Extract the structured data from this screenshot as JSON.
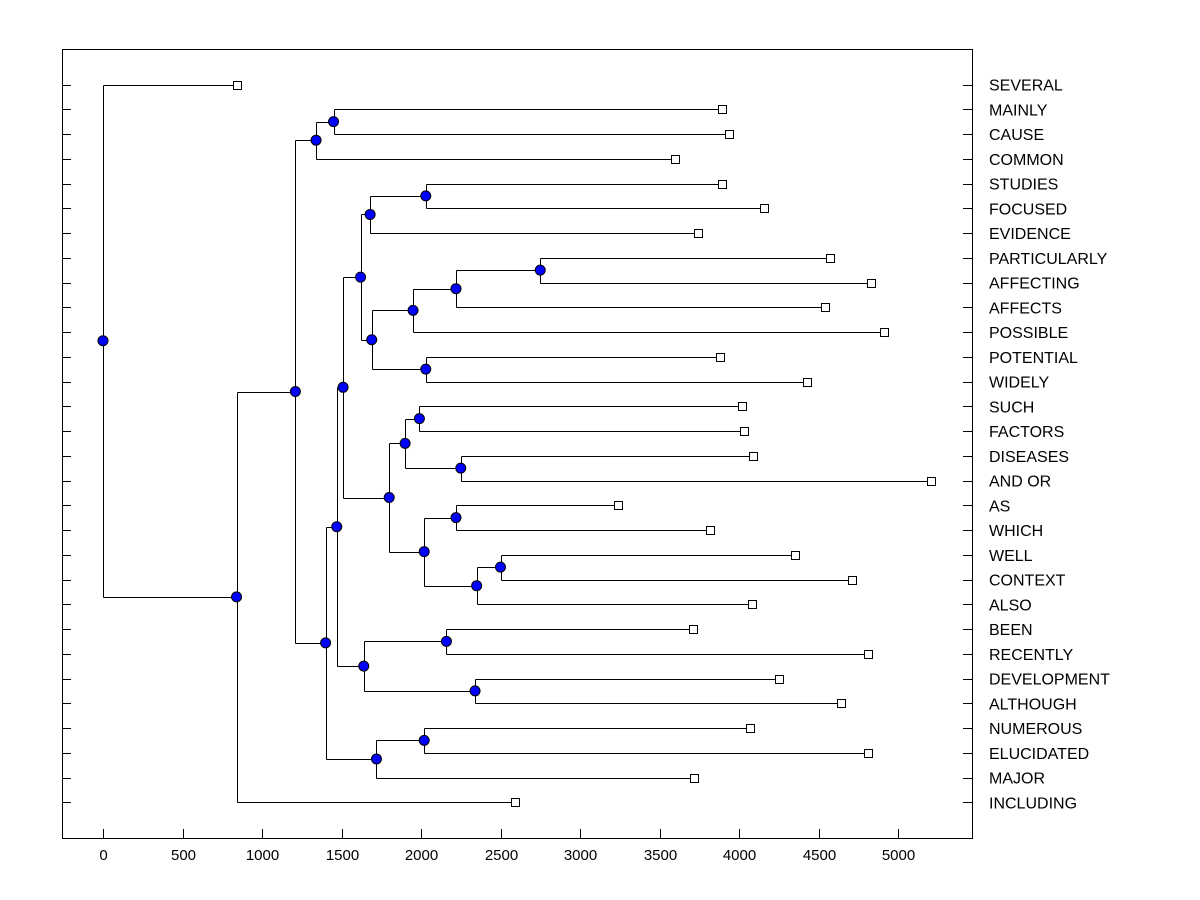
{
  "chart_data": {
    "type": "dendrogram",
    "orientation": "horizontal",
    "title": "",
    "xlabel": "",
    "ylabel": "",
    "xlim": [
      -260,
      5460
    ],
    "x_ticks": [
      0,
      500,
      1000,
      1500,
      2000,
      2500,
      3000,
      3500,
      4000,
      4500,
      5000
    ],
    "x_tick_labels": [
      "0",
      "500",
      "1000",
      "1500",
      "2000",
      "2500",
      "3000",
      "3500",
      "4000",
      "4500",
      "5000"
    ],
    "leaves": [
      {
        "label": "SEVERAL",
        "x": 840
      },
      {
        "label": "MAINLY",
        "x": 3890
      },
      {
        "label": "CAUSE",
        "x": 3940
      },
      {
        "label": "COMMON",
        "x": 3600
      },
      {
        "label": "STUDIES",
        "x": 3890
      },
      {
        "label": "FOCUSED",
        "x": 4160
      },
      {
        "label": "EVIDENCE",
        "x": 3740
      },
      {
        "label": "PARTICULARLY",
        "x": 4570
      },
      {
        "label": "AFFECTING",
        "x": 4830
      },
      {
        "label": "AFFECTS",
        "x": 4540
      },
      {
        "label": "POSSIBLE",
        "x": 4910
      },
      {
        "label": "POTENTIAL",
        "x": 3880
      },
      {
        "label": "WIDELY",
        "x": 4430
      },
      {
        "label": "SUCH",
        "x": 4020
      },
      {
        "label": "FACTORS",
        "x": 4030
      },
      {
        "label": "DISEASES",
        "x": 4090
      },
      {
        "label": "AND OR",
        "x": 5210
      },
      {
        "label": "AS",
        "x": 3240
      },
      {
        "label": "WHICH",
        "x": 3820
      },
      {
        "label": "WELL",
        "x": 4350
      },
      {
        "label": "CONTEXT",
        "x": 4710
      },
      {
        "label": "ALSO",
        "x": 4080
      },
      {
        "label": "BEEN",
        "x": 3710
      },
      {
        "label": "RECENTLY",
        "x": 4810
      },
      {
        "label": "DEVELOPMENT",
        "x": 4250
      },
      {
        "label": "ALTHOUGH",
        "x": 4640
      },
      {
        "label": "NUMEROUS",
        "x": 4070
      },
      {
        "label": "ELUCIDATED",
        "x": 4810
      },
      {
        "label": "MAJOR",
        "x": 3720
      },
      {
        "label": "INCLUDING",
        "x": 2590
      }
    ],
    "merges": [
      {
        "id": "m_mainly_cause",
        "x": 1450,
        "children": [
          "L1",
          "L2"
        ]
      },
      {
        "id": "m_mc_common",
        "x": 1340,
        "children": [
          "m_mainly_cause",
          "L3"
        ]
      },
      {
        "id": "m_studies_focused",
        "x": 2030,
        "children": [
          "L4",
          "L5"
        ]
      },
      {
        "id": "m_sf_evidence",
        "x": 1680,
        "children": [
          "m_studies_focused",
          "L6"
        ]
      },
      {
        "id": "m_part_affecting",
        "x": 2750,
        "children": [
          "L7",
          "L8"
        ]
      },
      {
        "id": "m_pa_affects",
        "x": 2220,
        "children": [
          "m_part_affecting",
          "L9"
        ]
      },
      {
        "id": "m_paa_possible",
        "x": 1950,
        "children": [
          "m_pa_affects",
          "L10"
        ]
      },
      {
        "id": "m_potential_widely",
        "x": 2030,
        "children": [
          "L11",
          "L12"
        ]
      },
      {
        "id": "m_pos_pot",
        "x": 1690,
        "children": [
          "m_paa_possible",
          "m_potential_widely"
        ]
      },
      {
        "id": "m_sfe_pos",
        "x": 1620,
        "children": [
          "m_sf_evidence",
          "m_pos_pot"
        ]
      },
      {
        "id": "m_such_factors",
        "x": 1990,
        "children": [
          "L13",
          "L14"
        ]
      },
      {
        "id": "m_diseases_andor",
        "x": 2250,
        "children": [
          "L15",
          "L16"
        ]
      },
      {
        "id": "m_sfd",
        "x": 1900,
        "children": [
          "m_such_factors",
          "m_diseases_andor"
        ]
      },
      {
        "id": "m_as_which",
        "x": 2220,
        "children": [
          "L17",
          "L18"
        ]
      },
      {
        "id": "m_well_context",
        "x": 2500,
        "children": [
          "L19",
          "L20"
        ]
      },
      {
        "id": "m_wc_also",
        "x": 2350,
        "children": [
          "m_well_context",
          "L21"
        ]
      },
      {
        "id": "m_aw_wca",
        "x": 2020,
        "children": [
          "m_as_which",
          "m_wc_also"
        ]
      },
      {
        "id": "m_sfd_aw",
        "x": 1800,
        "children": [
          "m_sfd",
          "m_aw_wca"
        ]
      },
      {
        "id": "m_big_upper",
        "x": 1510,
        "children": [
          "m_sfe_pos",
          "m_sfd_aw"
        ]
      },
      {
        "id": "m_been_recently",
        "x": 2160,
        "children": [
          "L22",
          "L23"
        ]
      },
      {
        "id": "m_dev_although",
        "x": 2340,
        "children": [
          "L24",
          "L25"
        ]
      },
      {
        "id": "m_br_da",
        "x": 1640,
        "children": [
          "m_been_recently",
          "m_dev_although"
        ]
      },
      {
        "id": "m_bu_brda",
        "x": 1470,
        "children": [
          "m_big_upper",
          "m_br_da"
        ]
      },
      {
        "id": "m_numerous_elucidated",
        "x": 2020,
        "children": [
          "L26",
          "L27"
        ]
      },
      {
        "id": "m_ne_major",
        "x": 1720,
        "children": [
          "m_numerous_elucidated",
          "L28"
        ]
      },
      {
        "id": "m_lower_mid",
        "x": 1400,
        "children": [
          "m_bu_brda",
          "m_ne_major"
        ]
      },
      {
        "id": "m_top_mid",
        "x": 1210,
        "children": [
          "m_mc_common",
          "m_lower_mid"
        ]
      },
      {
        "id": "m_tm_including",
        "x": 840,
        "children": [
          "m_top_mid",
          "L29"
        ]
      },
      {
        "id": "m_root",
        "x": 0,
        "children": [
          "L0",
          "m_tm_including"
        ]
      }
    ]
  },
  "colors": {
    "node": "#0000ff",
    "line": "#000000",
    "leaf_box": "#ffffff"
  }
}
